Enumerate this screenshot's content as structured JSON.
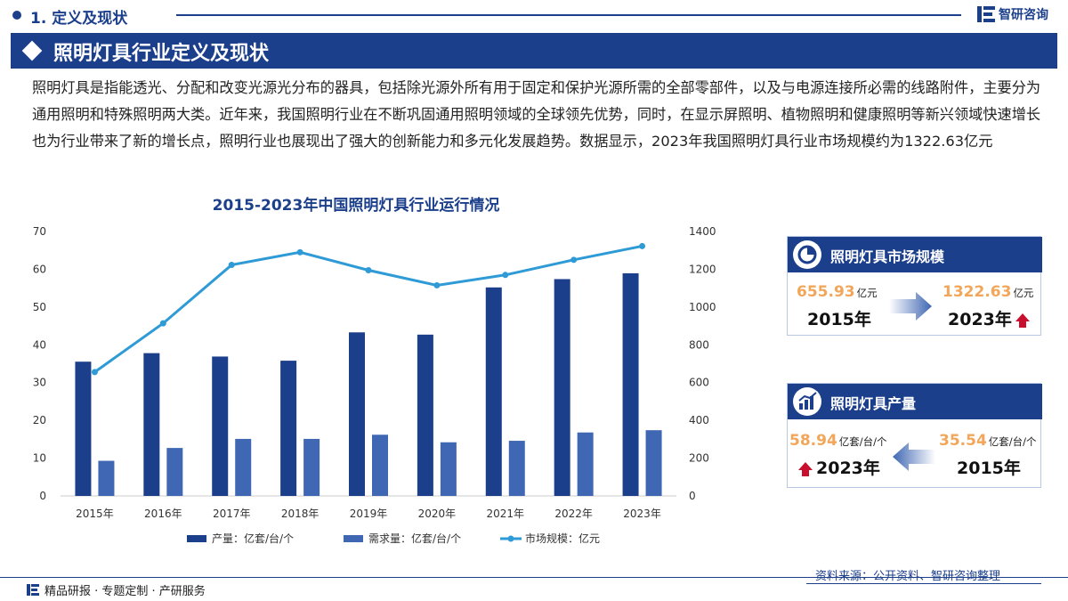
{
  "header": {
    "section_title": "1. 定义及现状",
    "logo_text": "智研咨询"
  },
  "banner": {
    "title": "照明灯具行业定义及现状"
  },
  "description": "照明灯具是指能透光、分配和改变光源光分布的器具，包括除光源外所有用于固定和保护光源所需的全部零部件，以及与电源连接所必需的线路附件，主要分为通用照明和特殊照明两大类。近年来，我国照明行业在不断巩固通用照明领域的全球领先优势，同时，在显示屏照明、植物照明和健康照明等新兴领域快速增长也为行业带来了新的增长点，照明行业也展现出了强大的创新能力和多元化发展趋势。数据显示，2023年我国照明灯具行业市场规模约为1322.63亿元",
  "chart_data": {
    "type": "bar",
    "title": "2015-2023年中国照明灯具行业运行情况",
    "categories": [
      "2015年",
      "2016年",
      "2017年",
      "2018年",
      "2019年",
      "2020年",
      "2021年",
      "2022年",
      "2023年"
    ],
    "series": [
      {
        "name": "产量：亿套/台/个",
        "type": "bar",
        "axis": "left",
        "color": "#1c3f8c",
        "values": [
          35.54,
          37.8,
          36.9,
          35.8,
          43.3,
          42.7,
          55.2,
          57.4,
          58.94
        ]
      },
      {
        "name": "需求量：亿套/台/个",
        "type": "bar",
        "axis": "left",
        "color": "#3f67b3",
        "values": [
          9.3,
          12.7,
          15.1,
          15.1,
          16.2,
          14.2,
          14.6,
          16.8,
          17.4
        ]
      },
      {
        "name": "市场规模：亿元",
        "type": "line",
        "axis": "right",
        "color": "#2e9ad6",
        "values": [
          655.93,
          914.0,
          1223.0,
          1290.0,
          1195.0,
          1115.0,
          1170.0,
          1250.0,
          1322.63
        ]
      }
    ],
    "y_left": {
      "range": [
        0,
        70
      ],
      "ticks": [
        "0",
        "10",
        "20",
        "30",
        "40",
        "50",
        "60",
        "70"
      ]
    },
    "y_right": {
      "range": [
        0,
        1400
      ],
      "ticks": [
        "0",
        "200",
        "400",
        "600",
        "800",
        "1000",
        "1200",
        "1400"
      ]
    },
    "grid": false,
    "legend": "bottom"
  },
  "card_market": {
    "title": "照明灯具市场规模",
    "start_value": "655.93",
    "start_unit": "亿元",
    "start_year": "2015年",
    "end_value": "1322.63",
    "end_unit": "亿元",
    "end_year": "2023年"
  },
  "card_output": {
    "title": "照明灯具产量",
    "latest_value": "58.94",
    "latest_unit": "亿套/台/个",
    "latest_year": "2023年",
    "start_value": "35.54",
    "start_unit": "亿套/台/个",
    "start_year": "2015年"
  },
  "footer": {
    "left": "精品研报 · 专题定制 · 产研服务",
    "source": "资料来源：公开资料、智研咨询整理"
  },
  "colors": {
    "brand": "#1c3f8c",
    "accent": "#f2a65a",
    "up_arrow": "#c8102e"
  }
}
